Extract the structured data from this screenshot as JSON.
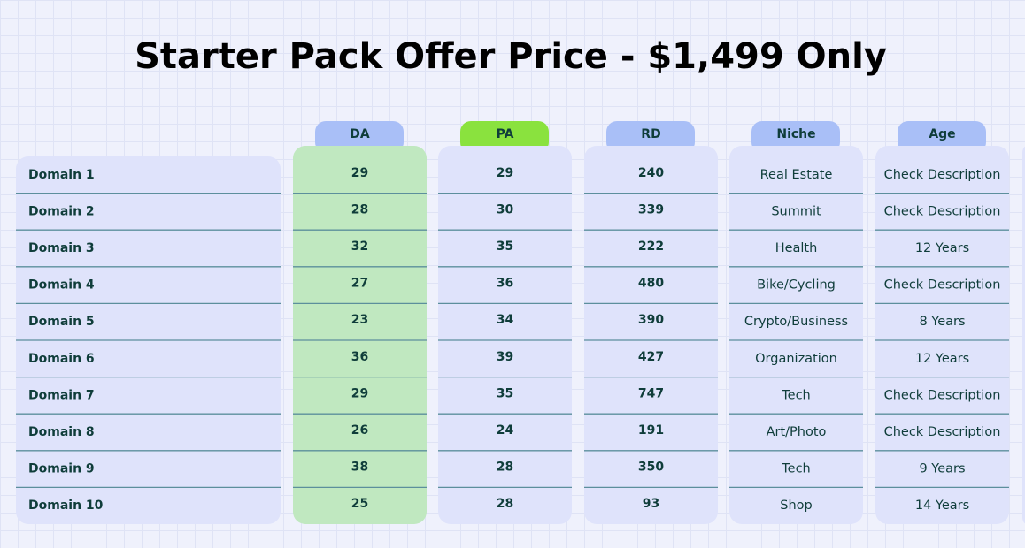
{
  "title": "Starter Pack Offer Price - $1,499 Only",
  "table": {
    "headers": [
      "DA",
      "PA",
      "RD",
      "Niche",
      "Age"
    ],
    "rows": [
      [
        "Domain 1",
        29,
        29,
        240,
        "Real Estate",
        "Check Description"
      ],
      [
        "Domain 2",
        28,
        30,
        339,
        "Summit",
        "Check Description"
      ],
      [
        "Domain 3",
        32,
        35,
        222,
        "Health",
        "12 Years"
      ],
      [
        "Domain 4",
        27,
        36,
        480,
        "Bike/Cycling",
        "Check Description"
      ],
      [
        "Domain 5",
        23,
        34,
        390,
        "Crypto/Business",
        "8 Years"
      ],
      [
        "Domain 6",
        36,
        39,
        427,
        "Organization",
        "12 Years"
      ],
      [
        "Domain 7",
        29,
        35,
        747,
        "Tech",
        "Check Description"
      ],
      [
        "Domain 8",
        26,
        24,
        191,
        "Art/Photo",
        "Check Description"
      ],
      [
        "Domain 9",
        38,
        28,
        350,
        "Tech",
        "9 Years"
      ],
      [
        "Domain 10",
        25,
        28,
        93,
        "Shop",
        "14 Years"
      ]
    ]
  }
}
